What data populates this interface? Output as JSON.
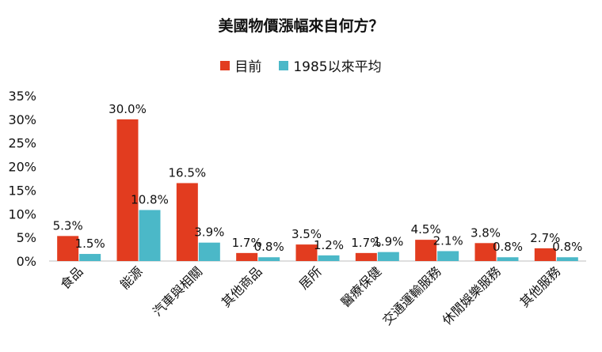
{
  "chart_data": {
    "type": "bar",
    "title": "美國物價漲幅來自何方？",
    "categories": [
      "食品",
      "能源",
      "汽車與相關",
      "其他商品",
      "居所",
      "醫療保健",
      "交通運輸服務",
      "休閒娛樂服務",
      "其他服務"
    ],
    "series": [
      {
        "name": "目前",
        "color": "#e23c1f",
        "values": [
          5.3,
          30.0,
          16.5,
          1.7,
          3.5,
          1.7,
          4.5,
          3.8,
          2.7
        ]
      },
      {
        "name": "1985以來平均",
        "color": "#4bb8c8",
        "values": [
          1.5,
          10.8,
          3.9,
          0.8,
          1.2,
          1.9,
          2.1,
          0.8,
          0.8
        ]
      }
    ],
    "ylim": [
      0,
      35
    ],
    "yticks": [
      "0%",
      "5%",
      "10%",
      "15%",
      "20%",
      "25%",
      "30%",
      "35%"
    ],
    "grid": false,
    "legend_position": "top-center",
    "value_label_format": "percent-1dp"
  }
}
